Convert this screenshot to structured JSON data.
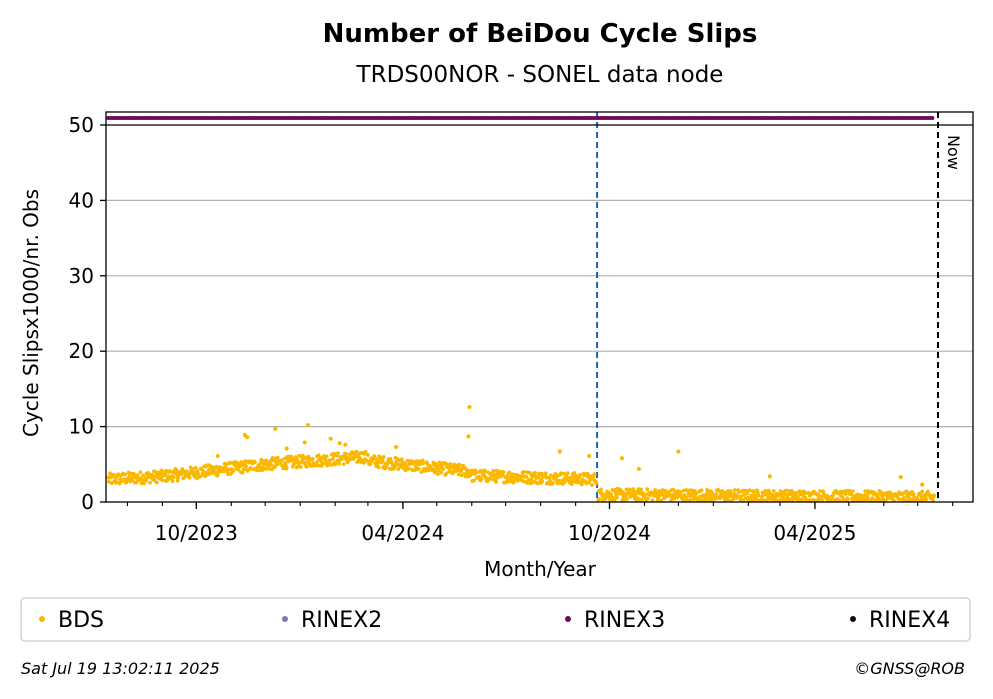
{
  "chart_data": {
    "type": "scatter",
    "title": "Number of BeiDou Cycle Slips",
    "subtitle": "TRDS00NOR - SONEL data node",
    "xlabel": "Month/Year",
    "ylabel": "Cycle Slipsx1000/nr. Obs",
    "ylim": [
      0,
      50
    ],
    "xlim": [
      "2023-07-13",
      "2025-08-19"
    ],
    "y_ticks": [
      0,
      10,
      20,
      30,
      40,
      50
    ],
    "x_ticks": [
      {
        "date": "2023-10-01",
        "label": "10/2023"
      },
      {
        "date": "2024-04-01",
        "label": "04/2024"
      },
      {
        "date": "2024-10-01",
        "label": "10/2024"
      },
      {
        "date": "2025-04-01",
        "label": "04/2025"
      }
    ],
    "grid": "horizontal",
    "vlines": [
      {
        "date": "2024-09-20",
        "color": "#1f5fb4",
        "style": "dashed",
        "label": ""
      },
      {
        "date": "2025-07-19",
        "color": "#000000",
        "style": "dashed",
        "label": "Now"
      }
    ],
    "series": [
      {
        "name": "BDS",
        "color": "#fbb800",
        "segments": [
          {
            "from": "2023-07-15",
            "to": "2023-08-31",
            "level_start": 3.0,
            "level_end": 3.4
          },
          {
            "from": "2023-09-01",
            "to": "2023-11-30",
            "level_start": 3.4,
            "level_end": 5.0
          },
          {
            "from": "2023-12-01",
            "to": "2024-02-28",
            "level_start": 5.0,
            "level_end": 6.0
          },
          {
            "from": "2024-03-01",
            "to": "2024-05-31",
            "level_start": 5.5,
            "level_end": 4.0
          },
          {
            "from": "2024-06-01",
            "to": "2024-09-19",
            "level_start": 3.5,
            "level_end": 3.0
          },
          {
            "from": "2024-09-21",
            "to": "2025-07-15",
            "level_start": 1.0,
            "level_end": 0.6
          }
        ],
        "outliers": [
          {
            "x": "2023-10-20",
            "y": 6.1
          },
          {
            "x": "2023-11-13",
            "y": 8.9
          },
          {
            "x": "2023-11-15",
            "y": 8.6
          },
          {
            "x": "2023-12-10",
            "y": 9.7
          },
          {
            "x": "2023-12-20",
            "y": 7.1
          },
          {
            "x": "2024-01-08",
            "y": 10.2
          },
          {
            "x": "2024-01-05",
            "y": 7.9
          },
          {
            "x": "2024-01-28",
            "y": 8.4
          },
          {
            "x": "2024-02-05",
            "y": 7.8
          },
          {
            "x": "2024-02-10",
            "y": 7.6
          },
          {
            "x": "2024-03-26",
            "y": 7.3
          },
          {
            "x": "2024-05-30",
            "y": 12.6
          },
          {
            "x": "2024-05-29",
            "y": 8.7
          },
          {
            "x": "2024-08-18",
            "y": 6.7
          },
          {
            "x": "2024-09-13",
            "y": 6.1
          },
          {
            "x": "2024-10-12",
            "y": 5.8
          },
          {
            "x": "2024-10-27",
            "y": 4.4
          },
          {
            "x": "2024-12-01",
            "y": 6.7
          },
          {
            "x": "2025-02-20",
            "y": 3.4
          },
          {
            "x": "2025-06-16",
            "y": 3.3
          },
          {
            "x": "2025-07-05",
            "y": 2.3
          }
        ]
      },
      {
        "name": "RINEX2",
        "color": "#7b76b6",
        "values": []
      },
      {
        "name": "RINEX3",
        "color": "#6c0a5e",
        "y": 51,
        "from": "2023-07-15",
        "to": "2025-07-15"
      },
      {
        "name": "RINEX4",
        "color": "#1a0318",
        "values": []
      }
    ],
    "legend": {
      "placement": "bottom",
      "entries": [
        {
          "label": "BDS",
          "color": "#fbb800"
        },
        {
          "label": "RINEX2",
          "color": "#7b76b6"
        },
        {
          "label": "RINEX3",
          "color": "#6c0a5e"
        },
        {
          "label": "RINEX4",
          "color": "#1a0318"
        }
      ]
    }
  },
  "footer": {
    "timestamp": "Sat Jul 19 13:02:11 2025",
    "credit": "©GNSS@ROB"
  }
}
